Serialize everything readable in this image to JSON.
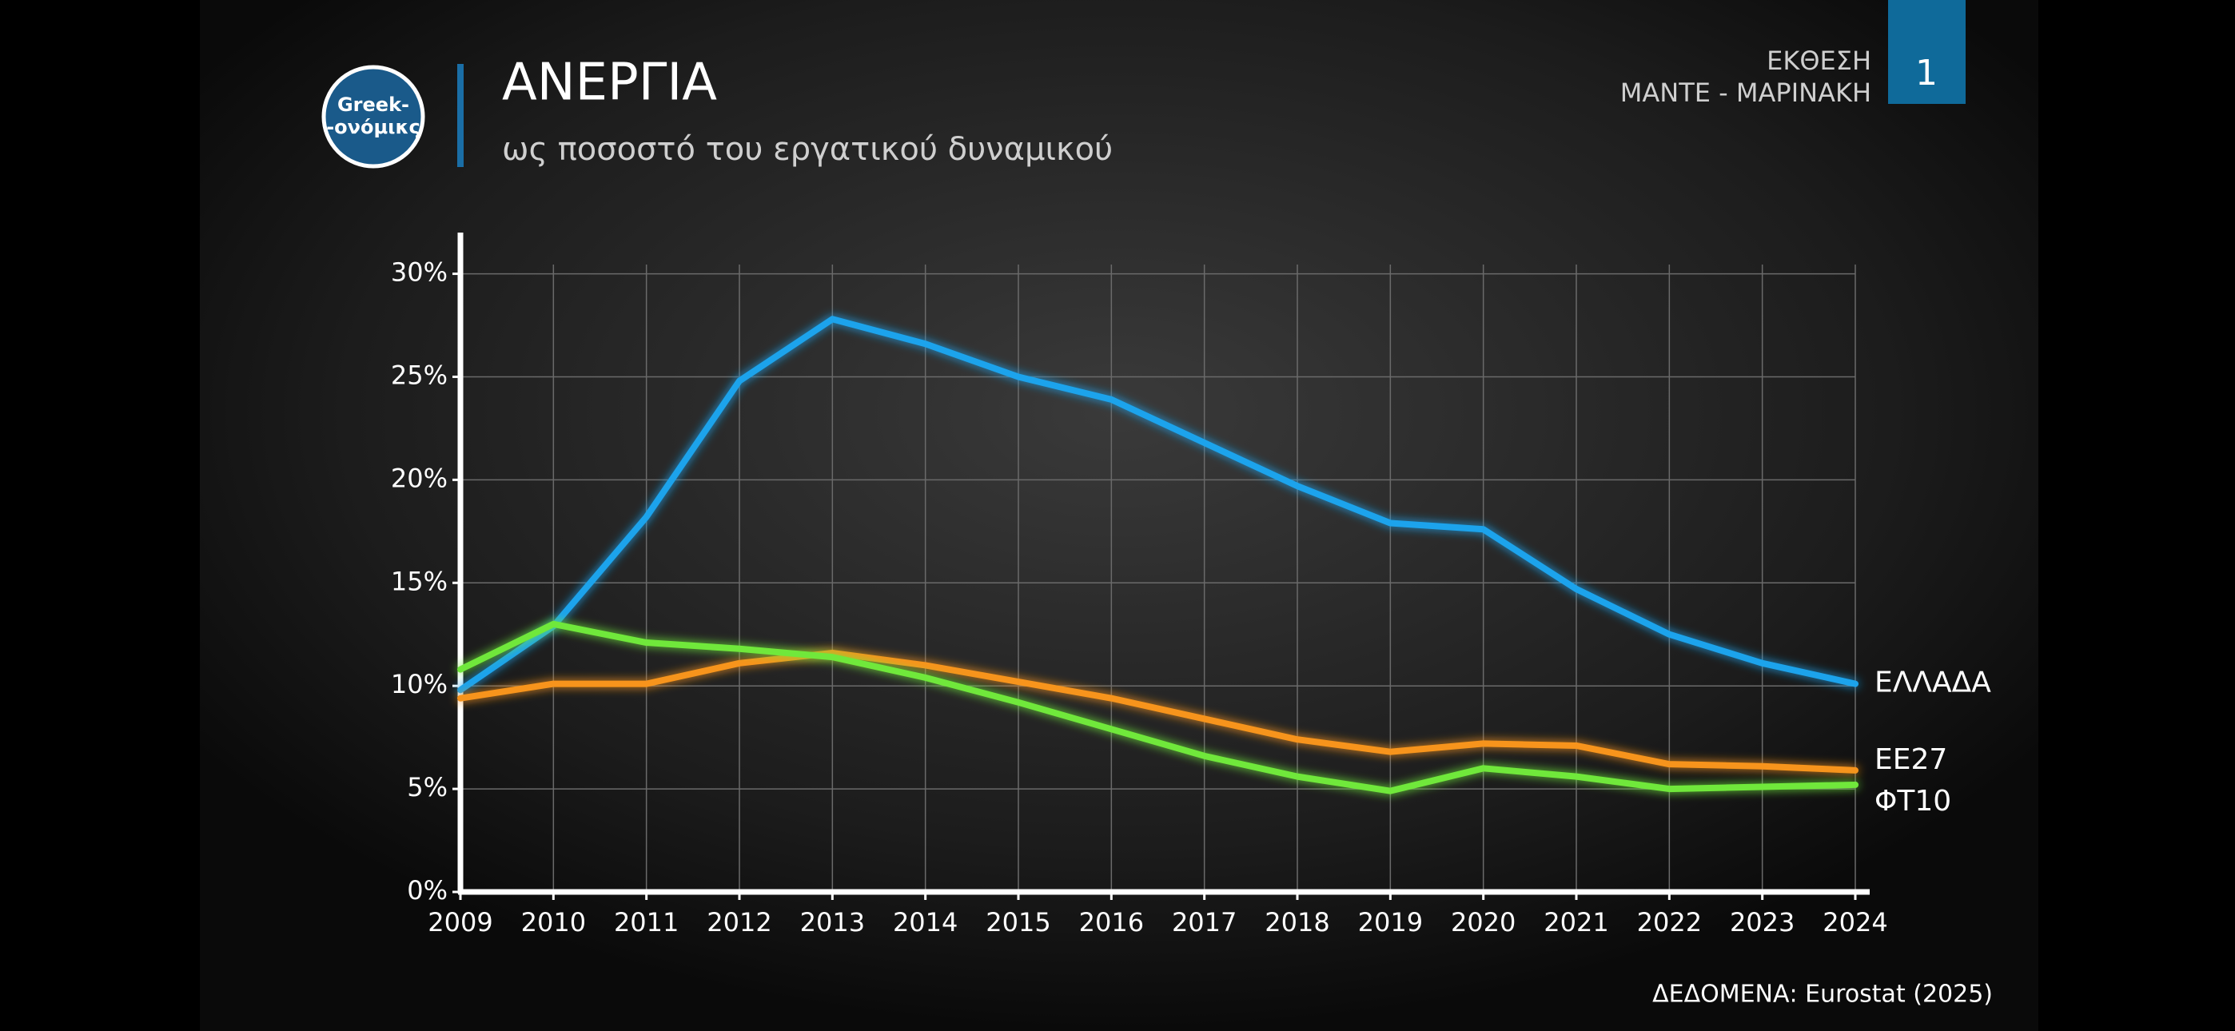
{
  "header": {
    "logo": [
      "Greek-",
      "-ονόμικς"
    ],
    "title": "ΑΝΕΡΓΙΑ",
    "subtitle": "ως ποσοστό του εργατικού δυναμικού",
    "report": [
      "ΕΚΘΕΣΗ",
      "ΜΑΝΤΕ - ΜΑΡΙΝΑΚΗ"
    ],
    "page": "1"
  },
  "chart_data": {
    "type": "line",
    "categories": [
      "2009",
      "2010",
      "2011",
      "2012",
      "2013",
      "2014",
      "2015",
      "2016",
      "2017",
      "2018",
      "2019",
      "2020",
      "2021",
      "2022",
      "2023",
      "2024"
    ],
    "series": [
      {
        "name": "ΕΛΛΑΔΑ",
        "color": "#1ea3ec",
        "values": [
          9.8,
          12.9,
          18.2,
          24.8,
          27.8,
          26.6,
          25.0,
          23.9,
          21.8,
          19.7,
          17.9,
          17.6,
          14.7,
          12.5,
          11.1,
          10.1
        ]
      },
      {
        "name": "ΕΕ27",
        "color": "#f7941d",
        "values": [
          9.4,
          10.1,
          10.1,
          11.1,
          11.6,
          11.0,
          10.2,
          9.4,
          8.4,
          7.4,
          6.8,
          7.2,
          7.1,
          6.2,
          6.1,
          5.9
        ]
      },
      {
        "name": "ΦΤ10",
        "color": "#6fe83a",
        "values": [
          10.8,
          13.0,
          12.1,
          11.8,
          11.4,
          10.4,
          9.2,
          7.9,
          6.6,
          5.6,
          4.9,
          6.0,
          5.6,
          5.0,
          5.1,
          5.2
        ]
      }
    ],
    "ylim": [
      0,
      32
    ],
    "yticks": [
      {
        "value": 0,
        "label": "0%"
      },
      {
        "value": 5,
        "label": "5%"
      },
      {
        "value": 10,
        "label": "10%"
      },
      {
        "value": 15,
        "label": "15%"
      },
      {
        "value": 20,
        "label": "20%"
      },
      {
        "value": 25,
        "label": "25%"
      },
      {
        "value": 30,
        "label": "30%"
      }
    ],
    "grid": true,
    "source": "ΔΕΔΟΜΕΝΑ: Eurostat (2025)"
  }
}
